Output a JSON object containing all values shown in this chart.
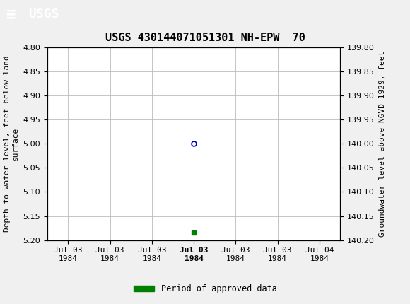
{
  "title": "USGS 430144071051301 NH-EPW  70",
  "title_fontsize": 11,
  "background_color": "#f0f0f0",
  "header_color": "#1a6b3c",
  "plot_bg_color": "#ffffff",
  "grid_color": "#bbbbbb",
  "left_ylabel": "Depth to water level, feet below land\nsurface",
  "right_ylabel": "Groundwater level above NGVD 1929, feet",
  "ylim_left": [
    4.8,
    5.2
  ],
  "ylim_right": [
    139.8,
    140.2
  ],
  "left_yticks": [
    4.8,
    4.85,
    4.9,
    4.95,
    5.0,
    5.05,
    5.1,
    5.15,
    5.2
  ],
  "right_yticks": [
    139.8,
    139.85,
    139.9,
    139.95,
    140.0,
    140.05,
    140.1,
    140.15,
    140.2
  ],
  "data_point_value": 5.0,
  "data_point_color": "#0000cc",
  "bar_value": 5.185,
  "bar_color": "#008000",
  "legend_label": "Period of approved data",
  "legend_color": "#008000",
  "font_family": "monospace",
  "tick_fontsize": 8,
  "ylabel_fontsize": 8,
  "header_text": "USGS",
  "header_symbol": "≡"
}
